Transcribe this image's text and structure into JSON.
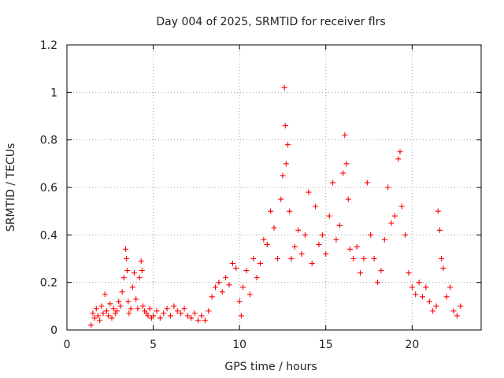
{
  "chart_data": {
    "type": "scatter",
    "title": "Day 004 of 2025, SRMTID for receiver flrs",
    "xlabel": "GPS time / hours",
    "ylabel": "SRMTID / TECUs",
    "xlim": [
      0,
      24
    ],
    "ylim": [
      0,
      1.2
    ],
    "xticks": [
      0,
      5,
      10,
      15,
      20
    ],
    "yticks": [
      0,
      0.2,
      0.4,
      0.6,
      0.8,
      1.0,
      1.2
    ],
    "xtick_labels": [
      "0",
      "5",
      "10",
      "15",
      "20"
    ],
    "ytick_labels": [
      "0",
      "0.2",
      "0.4",
      "0.6",
      "0.8",
      "1",
      "1.2"
    ],
    "grid": true,
    "marker": "+",
    "series": [
      {
        "name": "SRMTID",
        "color": "#ff0000",
        "x": [
          1.4,
          1.5,
          1.6,
          1.7,
          1.8,
          1.9,
          2.0,
          2.1,
          2.2,
          2.3,
          2.4,
          2.5,
          2.6,
          2.7,
          2.8,
          2.9,
          3.0,
          3.1,
          3.2,
          3.3,
          3.4,
          3.45,
          3.5,
          3.55,
          3.6,
          3.7,
          3.8,
          3.9,
          4.0,
          4.1,
          4.2,
          4.3,
          4.35,
          4.4,
          4.5,
          4.6,
          4.7,
          4.8,
          4.9,
          5.0,
          5.2,
          5.4,
          5.6,
          5.8,
          6.0,
          6.2,
          6.4,
          6.6,
          6.8,
          7.0,
          7.2,
          7.4,
          7.6,
          7.8,
          8.0,
          8.2,
          8.4,
          8.6,
          8.8,
          9.0,
          9.2,
          9.4,
          9.6,
          9.8,
          10.0,
          10.1,
          10.2,
          10.4,
          10.6,
          10.8,
          11.0,
          11.2,
          11.4,
          11.6,
          11.8,
          12.0,
          12.2,
          12.4,
          12.5,
          12.6,
          12.65,
          12.7,
          12.8,
          12.9,
          13.0,
          13.2,
          13.4,
          13.6,
          13.8,
          14.0,
          14.2,
          14.4,
          14.6,
          14.8,
          15.0,
          15.2,
          15.4,
          15.6,
          15.8,
          16.0,
          16.1,
          16.2,
          16.3,
          16.4,
          16.6,
          16.8,
          17.0,
          17.2,
          17.4,
          17.6,
          17.8,
          18.0,
          18.2,
          18.4,
          18.6,
          18.8,
          19.0,
          19.2,
          19.3,
          19.4,
          19.6,
          19.8,
          20.0,
          20.2,
          20.4,
          20.6,
          20.8,
          21.0,
          21.2,
          21.4,
          21.5,
          21.6,
          21.7,
          21.8,
          22.0,
          22.2,
          22.4,
          22.6,
          22.8
        ],
        "y": [
          0.02,
          0.07,
          0.05,
          0.09,
          0.06,
          0.04,
          0.1,
          0.07,
          0.15,
          0.08,
          0.06,
          0.11,
          0.05,
          0.09,
          0.07,
          0.08,
          0.12,
          0.1,
          0.16,
          0.22,
          0.34,
          0.3,
          0.25,
          0.12,
          0.07,
          0.09,
          0.18,
          0.24,
          0.13,
          0.09,
          0.22,
          0.29,
          0.25,
          0.1,
          0.08,
          0.07,
          0.06,
          0.09,
          0.05,
          0.06,
          0.08,
          0.05,
          0.07,
          0.09,
          0.06,
          0.1,
          0.08,
          0.07,
          0.09,
          0.06,
          0.05,
          0.07,
          0.04,
          0.06,
          0.04,
          0.08,
          0.14,
          0.18,
          0.2,
          0.16,
          0.22,
          0.19,
          0.28,
          0.26,
          0.12,
          0.06,
          0.18,
          0.25,
          0.15,
          0.3,
          0.22,
          0.28,
          0.38,
          0.36,
          0.5,
          0.43,
          0.3,
          0.55,
          0.65,
          1.02,
          0.86,
          0.7,
          0.78,
          0.5,
          0.3,
          0.35,
          0.42,
          0.32,
          0.4,
          0.58,
          0.28,
          0.52,
          0.36,
          0.4,
          0.32,
          0.48,
          0.62,
          0.38,
          0.44,
          0.66,
          0.82,
          0.7,
          0.55,
          0.34,
          0.3,
          0.35,
          0.24,
          0.3,
          0.62,
          0.4,
          0.3,
          0.2,
          0.25,
          0.38,
          0.6,
          0.45,
          0.48,
          0.72,
          0.75,
          0.52,
          0.4,
          0.24,
          0.18,
          0.15,
          0.2,
          0.14,
          0.18,
          0.12,
          0.08,
          0.1,
          0.5,
          0.42,
          0.3,
          0.26,
          0.14,
          0.18,
          0.08,
          0.06,
          0.1
        ]
      }
    ]
  }
}
